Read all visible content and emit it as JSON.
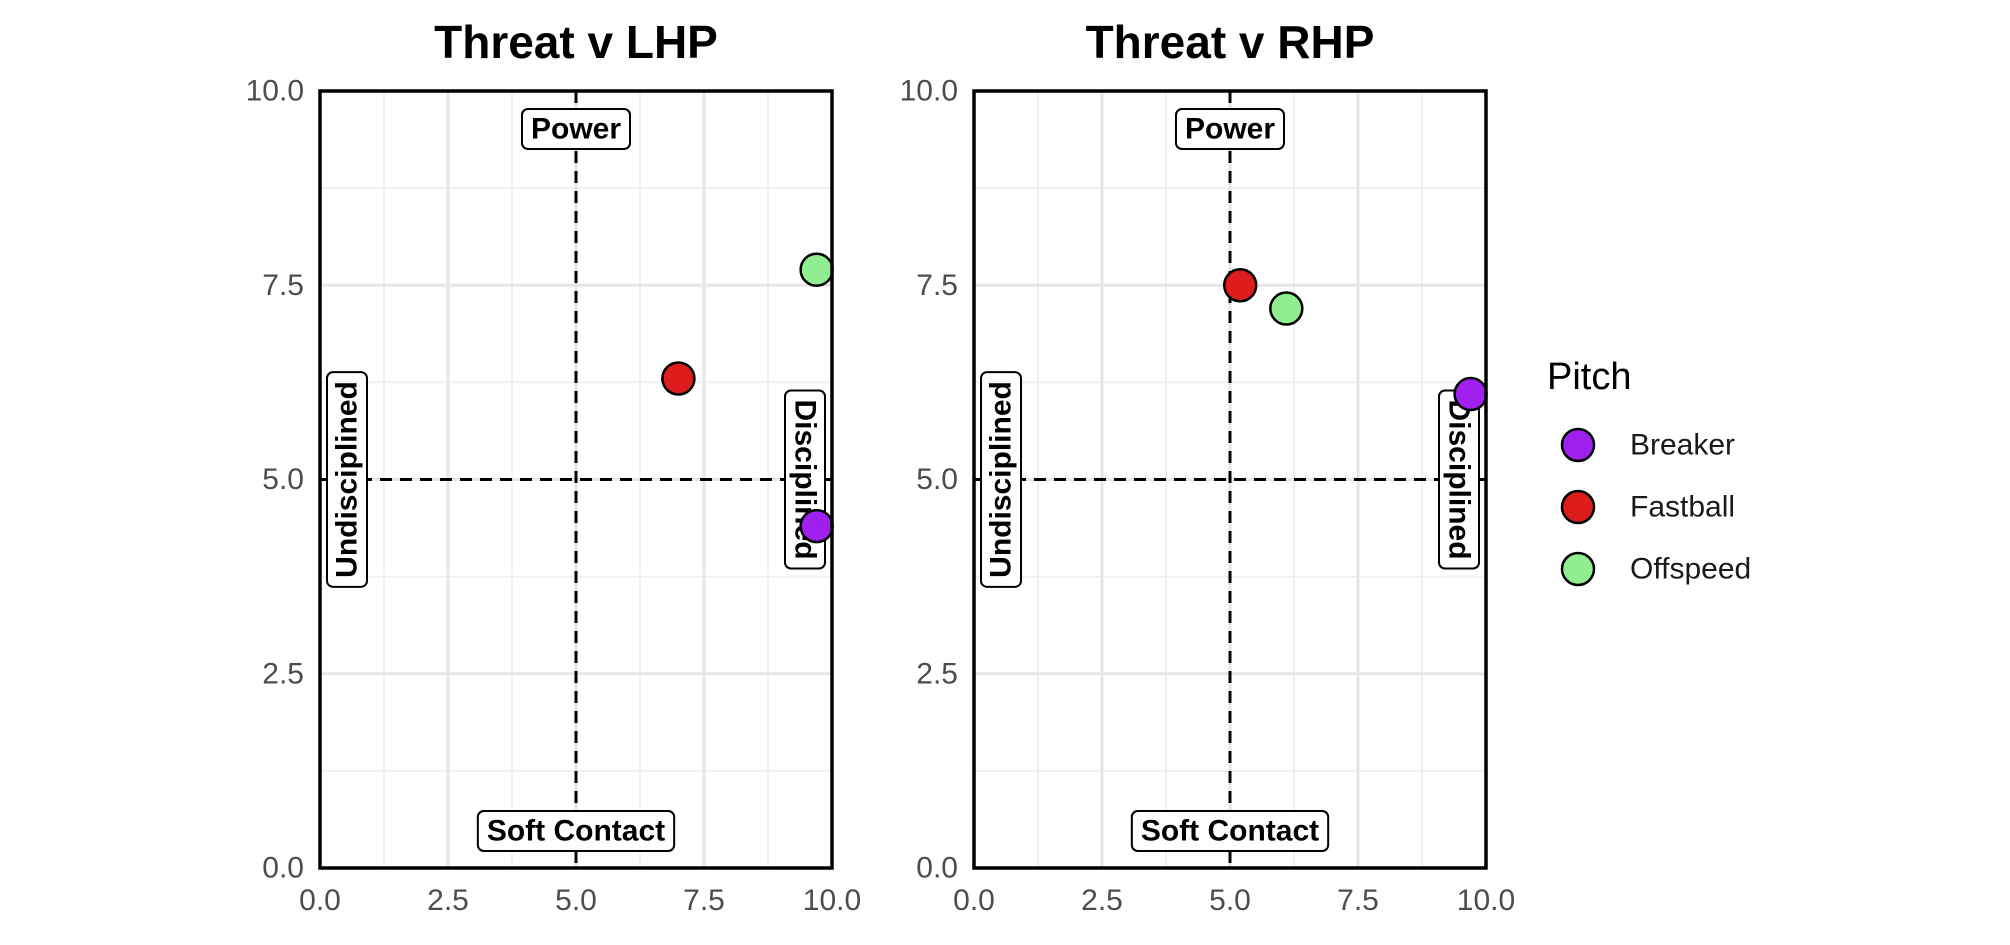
{
  "chart_data": [
    {
      "type": "scatter",
      "title": "Threat v LHP",
      "xlim": [
        0,
        10
      ],
      "ylim": [
        0,
        10
      ],
      "ticks": [
        "0.0",
        "2.5",
        "5.0",
        "7.5",
        "10.0"
      ],
      "tick_values": [
        0,
        2.5,
        5,
        7.5,
        10
      ],
      "grid": true,
      "reference_lines": {
        "x": 5,
        "y": 5,
        "style": "dashed"
      },
      "quadrant_labels": {
        "top": "Power",
        "bottom": "Soft Contact",
        "left": "Undisciplined",
        "right": "Disciplined"
      },
      "points": [
        {
          "series": "Breaker",
          "x": 9.7,
          "y": 4.4
        },
        {
          "series": "Fastball",
          "x": 7.0,
          "y": 6.3
        },
        {
          "series": "Offspeed",
          "x": 9.7,
          "y": 7.7
        }
      ]
    },
    {
      "type": "scatter",
      "title": "Threat v RHP",
      "xlim": [
        0,
        10
      ],
      "ylim": [
        0,
        10
      ],
      "ticks": [
        "0.0",
        "2.5",
        "5.0",
        "7.5",
        "10.0"
      ],
      "tick_values": [
        0,
        2.5,
        5,
        7.5,
        10
      ],
      "grid": true,
      "reference_lines": {
        "x": 5,
        "y": 5,
        "style": "dashed"
      },
      "quadrant_labels": {
        "top": "Power",
        "bottom": "Soft Contact",
        "left": "Undisciplined",
        "right": "Disciplined"
      },
      "points": [
        {
          "series": "Breaker",
          "x": 9.7,
          "y": 6.1
        },
        {
          "series": "Fastball",
          "x": 5.2,
          "y": 7.5
        },
        {
          "series": "Offspeed",
          "x": 6.1,
          "y": 7.2
        }
      ]
    }
  ],
  "legend": {
    "title": "Pitch",
    "position": "right",
    "items": [
      {
        "label": "Breaker",
        "color": "#a020f0"
      },
      {
        "label": "Fastball",
        "color": "#dd1c1c"
      },
      {
        "label": "Offspeed",
        "color": "#90ee90"
      }
    ]
  }
}
